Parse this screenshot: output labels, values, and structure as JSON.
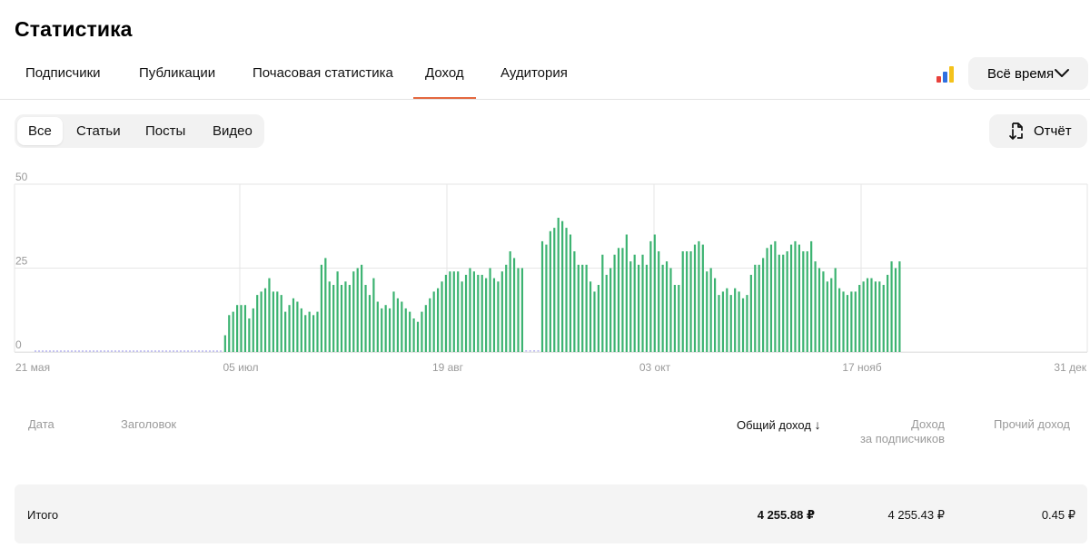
{
  "page_title": "Статистика",
  "tabs": [
    {
      "label": "Подписчики"
    },
    {
      "label": "Публикации"
    },
    {
      "label": "Почасовая статистика"
    },
    {
      "label": "Доход"
    },
    {
      "label": "Аудитория"
    }
  ],
  "active_tab": "Доход",
  "period_selector": {
    "label": "Всё время"
  },
  "content_filter": {
    "items": [
      "Все",
      "Статьи",
      "Посты",
      "Видео"
    ],
    "active": "Все"
  },
  "report_button": {
    "label": "Отчёт"
  },
  "colors": {
    "bar": "#3cb371",
    "accent": "#e4683f",
    "zero_line": "#b9b6f0"
  },
  "chart_data": {
    "type": "bar",
    "y_ticks": [
      "50",
      "25",
      "0"
    ],
    "ylim": [
      0,
      50
    ],
    "x_ticks": [
      "21 мая",
      "05 июл",
      "19 авг",
      "03 окт",
      "17 нояб",
      "31 дек"
    ],
    "grid": true,
    "zero_days": 47,
    "values": [
      5,
      11,
      12,
      14,
      14,
      14,
      10,
      13,
      17,
      18,
      19,
      22,
      18,
      18,
      17,
      12,
      14,
      16,
      15,
      13,
      11,
      12,
      11,
      12,
      26,
      28,
      21,
      20,
      24,
      20,
      21,
      20,
      24,
      25,
      26,
      20,
      17,
      22,
      15,
      13,
      14,
      13,
      18,
      16,
      15,
      13,
      12,
      10,
      9,
      12,
      14,
      16,
      18,
      19,
      21,
      23,
      24,
      24,
      24,
      21,
      23,
      25,
      24,
      23,
      23,
      22,
      25,
      22,
      21,
      24,
      26,
      30,
      28,
      25,
      25,
      0,
      0,
      0,
      0,
      33,
      32,
      36,
      37,
      40,
      39,
      37,
      35,
      30,
      26,
      26,
      26,
      21,
      18,
      20,
      29,
      23,
      25,
      29,
      31,
      31,
      35,
      27,
      29,
      26,
      29,
      26,
      33,
      35,
      30,
      26,
      27,
      25,
      20,
      20,
      30,
      30,
      30,
      32,
      33,
      32,
      24,
      25,
      22,
      17,
      18,
      19,
      17,
      19,
      18,
      16,
      17,
      23,
      26,
      26,
      28,
      31,
      32,
      33,
      29,
      29,
      30,
      32,
      33,
      32,
      30,
      30,
      33,
      27,
      25,
      24,
      21,
      22,
      25,
      19,
      18,
      17,
      18,
      18,
      20,
      21,
      22,
      22,
      21,
      21,
      20,
      23,
      27,
      25,
      27
    ]
  },
  "table": {
    "headers": {
      "date": "Дата",
      "title": "Заголовок",
      "total": "Общий доход",
      "sort_arrow": "↓",
      "subscribers_line1": "Доход",
      "subscribers_line2": "за подписчиков",
      "other": "Прочий доход"
    },
    "total_row": {
      "label": "Итого",
      "total": "4 255.88 ₽",
      "subscribers": "4 255.43 ₽",
      "other": "0.45 ₽"
    }
  }
}
